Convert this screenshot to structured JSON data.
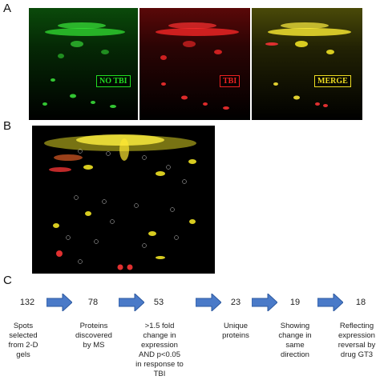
{
  "panels": {
    "a": "A",
    "b": "B",
    "c": "C"
  },
  "gel_labels": {
    "no_tbi": "NO TBI",
    "tbi": "TBI",
    "merge": "MERGE"
  },
  "colors": {
    "green_channel": "#22dd22",
    "red_channel": "#ee2222",
    "merge_channel": "#eedd22",
    "arrow_fill": "#4a7ac8"
  },
  "flow": [
    {
      "count": "132",
      "desc": "Spots selected from 2-D gels"
    },
    {
      "count": "78",
      "desc": "Proteins discovered by MS"
    },
    {
      "count": "53",
      "desc": ">1.5 fold change in expression AND p<0.05 in response to TBI"
    },
    {
      "count": "23",
      "desc": "Unique proteins"
    },
    {
      "count": "19",
      "desc": "Showing change in same direction"
    },
    {
      "count": "18",
      "desc": "Reflecting expression reversal by drug GT3"
    }
  ]
}
